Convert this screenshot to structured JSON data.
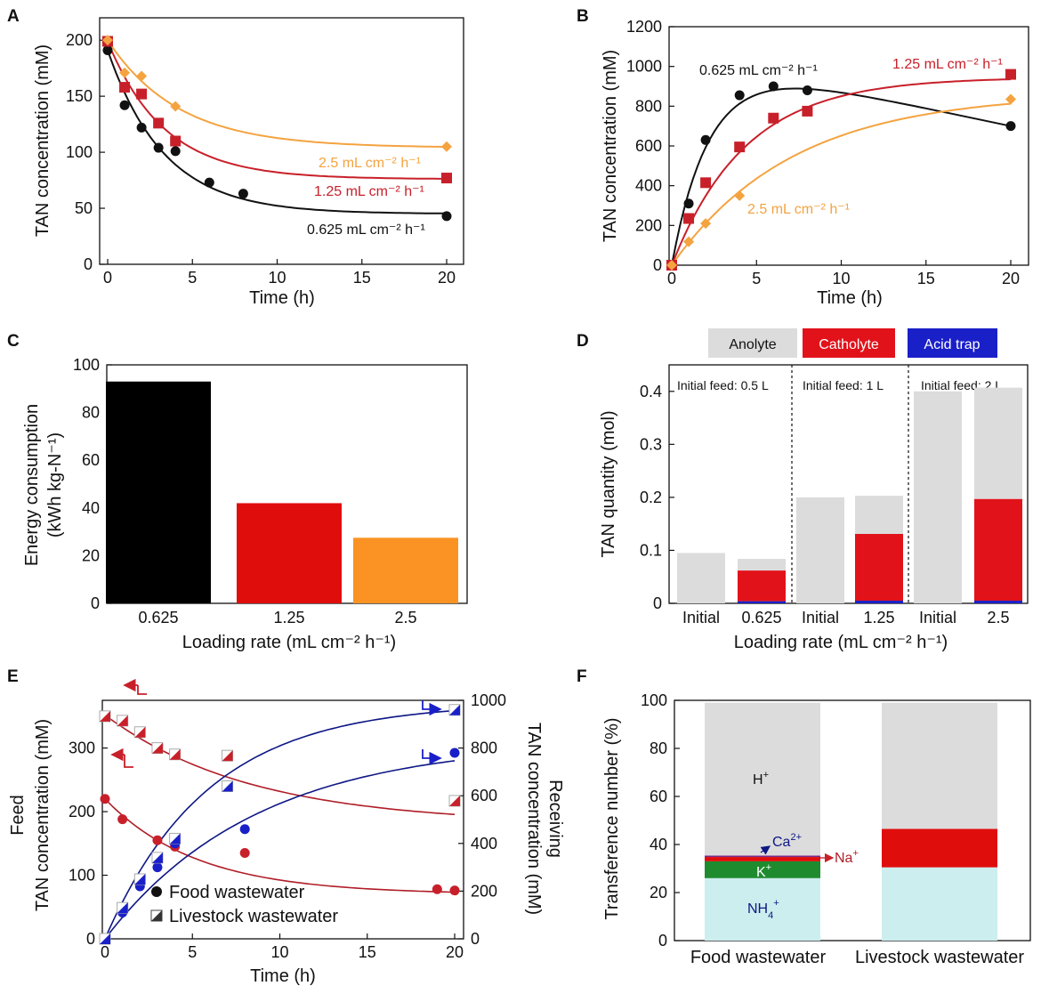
{
  "colors": {
    "black": "#111111",
    "red": "#c8202a",
    "orange": "#f4a340",
    "grey": "#dcdcdc",
    "catholyte": "#e2121a",
    "acid": "#1a20c8",
    "navy": "#0e1785",
    "darkred": "#b01e28",
    "green": "#1e8c2e",
    "cyan": "#cceeee",
    "purple": "#7a2a8a",
    "bar_black": "#000000",
    "bar_red": "#e00d0d",
    "bar_orange": "#fa9323"
  },
  "chart_data": [
    {
      "panel": "A",
      "type": "scatter",
      "xlabel": "Time (h)",
      "ylabel": "TAN concentration (mM)",
      "xlim": [
        0,
        20
      ],
      "ylim": [
        0,
        220
      ],
      "xticks": [
        "0",
        "5",
        "10",
        "15",
        "20"
      ],
      "yticks": [
        "0",
        "50",
        "100",
        "150",
        "200"
      ],
      "series": [
        {
          "name": "0.625 mL cm-2 h-1",
          "label": "0.625 mL cm⁻² h⁻¹",
          "color": "#111111",
          "marker": "circle",
          "x": [
            0,
            1,
            2,
            3,
            4,
            6,
            8,
            20
          ],
          "y": [
            191,
            142,
            122,
            104,
            101,
            73,
            63,
            43
          ],
          "fit": {
            "a": 45,
            "b": 146,
            "k": 0.3
          }
        },
        {
          "name": "1.25 mL cm-2 h-1",
          "label": "1.25 mL cm⁻² h⁻¹",
          "color": "#c8202a",
          "marker": "square",
          "x": [
            0,
            1,
            2,
            3,
            4,
            20
          ],
          "y": [
            199,
            158,
            152,
            126,
            110,
            77
          ],
          "fit": {
            "a": 76,
            "b": 123,
            "k": 0.3
          }
        },
        {
          "name": "2.5 mL cm-2 h-1",
          "label": "2.5 mL cm⁻² h⁻¹",
          "color": "#f4a340",
          "marker": "diamond",
          "x": [
            0,
            1,
            2,
            4,
            20
          ],
          "y": [
            200,
            171,
            168,
            141,
            105
          ],
          "fit": {
            "a": 104,
            "b": 96,
            "k": 0.24
          }
        }
      ]
    },
    {
      "panel": "B",
      "type": "scatter",
      "xlabel": "Time (h)",
      "ylabel": "TAN concentration (mM)",
      "xlim": [
        0,
        20
      ],
      "ylim": [
        0,
        1200
      ],
      "xticks": [
        "0",
        "5",
        "10",
        "15",
        "20"
      ],
      "yticks": [
        "0",
        "200",
        "400",
        "600",
        "800",
        "1000",
        "1200"
      ],
      "series": [
        {
          "name": "0.625 mL cm-2 h-1",
          "label": "0.625 mL cm⁻² h⁻¹",
          "color": "#111111",
          "marker": "circle",
          "x": [
            0,
            1,
            2,
            4,
            6,
            8,
            20
          ],
          "y": [
            0,
            310,
            630,
            855,
            900,
            880,
            700
          ]
        },
        {
          "name": "1.25 mL cm-2 h-1",
          "label": "1.25 mL cm⁻² h⁻¹",
          "color": "#c8202a",
          "marker": "square",
          "x": [
            0,
            1,
            2,
            4,
            6,
            8,
            20
          ],
          "y": [
            0,
            235,
            415,
            595,
            740,
            775,
            960
          ],
          "fit": {
            "a": 945,
            "b": 945,
            "k": 0.23
          }
        },
        {
          "name": "2.5 mL cm-2 h-1",
          "label": "2.5 mL cm⁻² h⁻¹",
          "color": "#f4a340",
          "marker": "diamond",
          "x": [
            0,
            1,
            2,
            4,
            20
          ],
          "y": [
            0,
            118,
            210,
            350,
            835
          ],
          "fit": {
            "a": 865,
            "b": 865,
            "k": 0.14
          }
        }
      ]
    },
    {
      "panel": "C",
      "type": "bar",
      "xlabel": "Loading rate (mL cm⁻² h⁻¹)",
      "ylabel": "Energy  consumption",
      "ylabel2": "(kWh kg-N⁻¹)",
      "ylim": [
        0,
        100
      ],
      "yticks": [
        "0",
        "20",
        "40",
        "60",
        "80",
        "100"
      ],
      "categories": [
        "0.625",
        "1.25",
        "2.5"
      ],
      "values": [
        93,
        42,
        27.5
      ],
      "colors": [
        "#000000",
        "#e00d0d",
        "#fa9323"
      ]
    },
    {
      "panel": "D",
      "type": "bar",
      "xlabel": "Loading rate (mL cm⁻² h⁻¹)",
      "ylabel": "TAN quantity (mol)",
      "ylim": [
        0,
        0.45
      ],
      "yticks": [
        "0",
        "0.1",
        "0.2",
        "0.3",
        "0.4"
      ],
      "legend": [
        "Anolyte",
        "Catholyte",
        "Acid trap"
      ],
      "groups": [
        "Initial feed: 0.5 L",
        "Initial feed: 1 L",
        "Initial feed: 2 L"
      ],
      "categories": [
        "Initial",
        "0.625",
        "Initial",
        "1.25",
        "Initial",
        "2.5"
      ],
      "series": [
        {
          "name": "Acid trap",
          "values": [
            0,
            0.004,
            0,
            0.005,
            0,
            0.005
          ]
        },
        {
          "name": "Catholyte",
          "values": [
            0,
            0.058,
            0,
            0.126,
            0,
            0.192
          ]
        },
        {
          "name": "Anolyte",
          "values": [
            0.095,
            0.022,
            0.2,
            0.072,
            0.4,
            0.21
          ]
        }
      ]
    },
    {
      "panel": "E",
      "type": "scatter",
      "xlabel": "Time (h)",
      "ylabel_left": [
        "Feed",
        "TAN concentration (mM)"
      ],
      "ylabel_right": [
        "Receiving",
        "TAN concentration (mM)"
      ],
      "xlim": [
        0,
        20
      ],
      "ylim_left": [
        0,
        375
      ],
      "ylim_right": [
        0,
        1000
      ],
      "xticks": [
        "0",
        "5",
        "10",
        "15",
        "20"
      ],
      "yticks_left": [
        "0",
        "100",
        "200",
        "300"
      ],
      "yticks_right": [
        "0",
        "200",
        "400",
        "600",
        "800",
        "1000"
      ],
      "legend": [
        "Food wastewater",
        "Livestock wastewater"
      ],
      "series": [
        {
          "name": "Food wastewater feed",
          "axis": "left",
          "marker": "circle",
          "color": "#c8202a",
          "x": [
            0,
            1,
            3,
            4,
            8,
            19,
            20
          ],
          "y": [
            220,
            188,
            155,
            145,
            135,
            78,
            76
          ],
          "fit": {
            "a": 70,
            "b": 150,
            "k": 0.19
          }
        },
        {
          "name": "Livestock wastewater feed",
          "axis": "left",
          "marker": "halfsquare",
          "color": "#c8202a",
          "x": [
            0,
            1,
            2,
            3,
            4,
            7,
            20
          ],
          "y": [
            350,
            343,
            325,
            300,
            290,
            288,
            217
          ],
          "fit": {
            "a": 180,
            "b": 172,
            "k": 0.12
          }
        },
        {
          "name": "Food wastewater receiving",
          "axis": "right",
          "marker": "circle",
          "color": "#1a20c8",
          "x": [
            0,
            1,
            2,
            3,
            4,
            8,
            20
          ],
          "y": [
            0,
            110,
            220,
            300,
            400,
            460,
            780
          ],
          "fit": {
            "a": 830,
            "b": 830,
            "k": 0.115
          }
        },
        {
          "name": "Livestock wastewater receiving",
          "axis": "right",
          "marker": "halfsquare",
          "color": "#1a20c8",
          "x": [
            0,
            1,
            2,
            3,
            4,
            7,
            20
          ],
          "y": [
            0,
            130,
            250,
            340,
            420,
            640,
            960
          ],
          "fit": {
            "a": 990,
            "b": 990,
            "k": 0.17
          }
        }
      ]
    },
    {
      "panel": "F",
      "type": "bar",
      "xlabel": "",
      "ylabel": "Transference number (%)",
      "ylim": [
        0,
        100
      ],
      "yticks": [
        "0",
        "20",
        "40",
        "60",
        "80",
        "100"
      ],
      "categories": [
        "Food wastewater",
        "Livestock wastewater"
      ],
      "series": [
        {
          "name": "NH4+",
          "values": [
            26,
            30.5
          ]
        },
        {
          "name": "K+",
          "values": [
            7,
            0
          ]
        },
        {
          "name": "Na+",
          "values": [
            1.8,
            16
          ]
        },
        {
          "name": "Ca2+",
          "values": [
            0.6,
            0
          ]
        },
        {
          "name": "H+",
          "values": [
            63.6,
            52.5
          ]
        }
      ]
    }
  ],
  "panel_labels": [
    "A",
    "B",
    "C",
    "D",
    "E",
    "F"
  ],
  "annotations": {
    "F_H": "H",
    "F_H_sup": "+",
    "F_Ca": "Ca",
    "F_Ca_sup": "2+",
    "F_K": "K",
    "F_K_sup": "+",
    "F_NH4": "NH",
    "F_NH4_sub": "4",
    "F_NH4_sup": "+",
    "F_Na": "Na",
    "F_Na_sup": "+"
  }
}
